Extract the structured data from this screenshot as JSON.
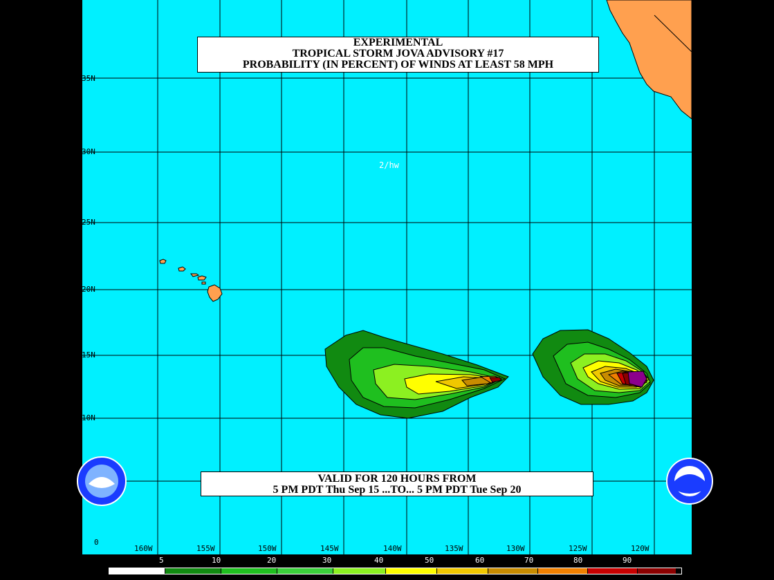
{
  "title": {
    "line1": "EXPERIMENTAL",
    "line2": "TROPICAL STORM JOVA ADVISORY #17",
    "line3": "PROBABILITY (IN PERCENT) OF WINDS AT LEAST 58 MPH"
  },
  "valid": {
    "line1": "VALID FOR 120 HOURS FROM",
    "line2": "5 PM PDT Thu Sep 15 ...TO... 5 PM PDT Tue Sep 20"
  },
  "note": "2/hw",
  "lat_labels": [
    "35N",
    "30N",
    "25N",
    "20N",
    "15N",
    "10N",
    "0"
  ],
  "lon_labels": [
    "160W",
    "155W",
    "150W",
    "145W",
    "140W",
    "135W",
    "130W",
    "125W",
    "120W"
  ],
  "legend": {
    "labels": [
      "5",
      "10",
      "20",
      "30",
      "40",
      "50",
      "60",
      "70",
      "80",
      "90"
    ],
    "colors": [
      "#ffffff",
      "#118a11",
      "#1fbf1f",
      "#3ad03a",
      "#8cf021",
      "#ffff00",
      "#f0c800",
      "#c88c00",
      "#f08000",
      "#c80000",
      "#8c0000",
      "#8c008c"
    ]
  },
  "colors": {
    "ocean": "#00f0ff",
    "land": "#ffa04f",
    "frame": "#000000"
  },
  "logos": {
    "left": "NATIONAL WEATHER SERVICE",
    "right": "NOAA"
  }
}
